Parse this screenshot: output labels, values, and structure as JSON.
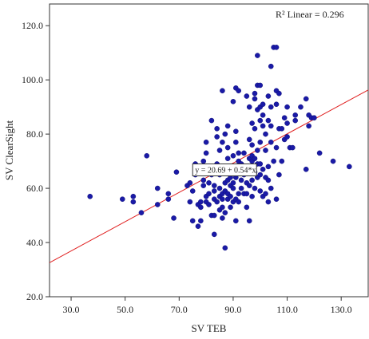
{
  "chart_data": {
    "type": "scatter",
    "title": "",
    "xlabel": "SV TEB",
    "ylabel": "SV ClearSight",
    "xlim": [
      22,
      140
    ],
    "ylim": [
      20,
      128
    ],
    "xticks": [
      30,
      50,
      70,
      90,
      110,
      130
    ],
    "yticks": [
      20,
      40,
      60,
      80,
      100,
      120
    ],
    "xtick_labels": [
      "30.0",
      "50.0",
      "70.0",
      "90.0",
      "110.0",
      "130.0"
    ],
    "ytick_labels": [
      "20.0",
      "40.0",
      "60.0",
      "80.0",
      "100.0",
      "120.0"
    ],
    "grid": false,
    "marker_color": "#1a1aa6",
    "fit_color": "#e02020",
    "r2_label": "R² Linear = 0.296",
    "equation_label": "y = 20.69 + 0.54*x",
    "fit": {
      "intercept": 20.69,
      "slope": 0.54
    },
    "points": [
      [
        37,
        57
      ],
      [
        49,
        56
      ],
      [
        53,
        55
      ],
      [
        53,
        57
      ],
      [
        56,
        51
      ],
      [
        58,
        72
      ],
      [
        62,
        54
      ],
      [
        62,
        60
      ],
      [
        66,
        58
      ],
      [
        66,
        56
      ],
      [
        68,
        49
      ],
      [
        69,
        66
      ],
      [
        73,
        61
      ],
      [
        74,
        55
      ],
      [
        74,
        62
      ],
      [
        75,
        48
      ],
      [
        75,
        59
      ],
      [
        76,
        65
      ],
      [
        76,
        69
      ],
      [
        77,
        46
      ],
      [
        77,
        54
      ],
      [
        78,
        48
      ],
      [
        78,
        53
      ],
      [
        78,
        55
      ],
      [
        79,
        61
      ],
      [
        79,
        63
      ],
      [
        79,
        70
      ],
      [
        80,
        55
      ],
      [
        80,
        57
      ],
      [
        80,
        73
      ],
      [
        80,
        77
      ],
      [
        81,
        54
      ],
      [
        81,
        58
      ],
      [
        81,
        62
      ],
      [
        82,
        85
      ],
      [
        82,
        50
      ],
      [
        82,
        65
      ],
      [
        83,
        43
      ],
      [
        83,
        50
      ],
      [
        83,
        56
      ],
      [
        83,
        59
      ],
      [
        83,
        61
      ],
      [
        84,
        79
      ],
      [
        84,
        82
      ],
      [
        84,
        55
      ],
      [
        84,
        69
      ],
      [
        85,
        52
      ],
      [
        85,
        57
      ],
      [
        85,
        60
      ],
      [
        85,
        65
      ],
      [
        85,
        74
      ],
      [
        86,
        49
      ],
      [
        86,
        53
      ],
      [
        86,
        56
      ],
      [
        86,
        58
      ],
      [
        86,
        77
      ],
      [
        86,
        96
      ],
      [
        87,
        38
      ],
      [
        87,
        51
      ],
      [
        87,
        59
      ],
      [
        87,
        62
      ],
      [
        87,
        80
      ],
      [
        88,
        56
      ],
      [
        88,
        58
      ],
      [
        88,
        63
      ],
      [
        88,
        71
      ],
      [
        88,
        75
      ],
      [
        88,
        83
      ],
      [
        89,
        53
      ],
      [
        89,
        57
      ],
      [
        89,
        61
      ],
      [
        89,
        64
      ],
      [
        90,
        55
      ],
      [
        90,
        60
      ],
      [
        90,
        62
      ],
      [
        90,
        66
      ],
      [
        90,
        72
      ],
      [
        90,
        92
      ],
      [
        91,
        48
      ],
      [
        91,
        56
      ],
      [
        91,
        64
      ],
      [
        91,
        77
      ],
      [
        91,
        81
      ],
      [
        91,
        97
      ],
      [
        92,
        55
      ],
      [
        92,
        58
      ],
      [
        92,
        67
      ],
      [
        92,
        70
      ],
      [
        92,
        73
      ],
      [
        92,
        96
      ],
      [
        93,
        60
      ],
      [
        93,
        63
      ],
      [
        93,
        69
      ],
      [
        94,
        58
      ],
      [
        94,
        65
      ],
      [
        94,
        73
      ],
      [
        95,
        53
      ],
      [
        95,
        58
      ],
      [
        95,
        62
      ],
      [
        95,
        94
      ],
      [
        96,
        48
      ],
      [
        96,
        61
      ],
      [
        96,
        66
      ],
      [
        96,
        71
      ],
      [
        96,
        78
      ],
      [
        96,
        90
      ],
      [
        97,
        57
      ],
      [
        97,
        63
      ],
      [
        97,
        66
      ],
      [
        97,
        70
      ],
      [
        97,
        72
      ],
      [
        97,
        76
      ],
      [
        97,
        84
      ],
      [
        98,
        60
      ],
      [
        98,
        66
      ],
      [
        98,
        71
      ],
      [
        98,
        82
      ],
      [
        98,
        93
      ],
      [
        98,
        95
      ],
      [
        99,
        64
      ],
      [
        99,
        69
      ],
      [
        99,
        74
      ],
      [
        99,
        89
      ],
      [
        99,
        109
      ],
      [
        99,
        98
      ],
      [
        100,
        59
      ],
      [
        100,
        65
      ],
      [
        100,
        69
      ],
      [
        100,
        77
      ],
      [
        100,
        85
      ],
      [
        100,
        90
      ],
      [
        100,
        98
      ],
      [
        101,
        57
      ],
      [
        101,
        67
      ],
      [
        101,
        83
      ],
      [
        101,
        87
      ],
      [
        101,
        91
      ],
      [
        102,
        58
      ],
      [
        102,
        64
      ],
      [
        102,
        74
      ],
      [
        102,
        80
      ],
      [
        103,
        55
      ],
      [
        103,
        63
      ],
      [
        103,
        68
      ],
      [
        103,
        85
      ],
      [
        103,
        94
      ],
      [
        104,
        60
      ],
      [
        104,
        77
      ],
      [
        104,
        83
      ],
      [
        104,
        90
      ],
      [
        104,
        105
      ],
      [
        105,
        70
      ],
      [
        105,
        112
      ],
      [
        106,
        56
      ],
      [
        106,
        75
      ],
      [
        106,
        91
      ],
      [
        106,
        96
      ],
      [
        106,
        112
      ],
      [
        107,
        65
      ],
      [
        107,
        82
      ],
      [
        107,
        95
      ],
      [
        108,
        70
      ],
      [
        108,
        82
      ],
      [
        109,
        78
      ],
      [
        109,
        86
      ],
      [
        110,
        79
      ],
      [
        110,
        84
      ],
      [
        110,
        90
      ],
      [
        111,
        75
      ],
      [
        112,
        75
      ],
      [
        113,
        87
      ],
      [
        113,
        85
      ],
      [
        115,
        90
      ],
      [
        117,
        93
      ],
      [
        117,
        67
      ],
      [
        118,
        83
      ],
      [
        118,
        87
      ],
      [
        119,
        86
      ],
      [
        120,
        86
      ],
      [
        122,
        73
      ],
      [
        127,
        70
      ],
      [
        133,
        68
      ]
    ]
  }
}
